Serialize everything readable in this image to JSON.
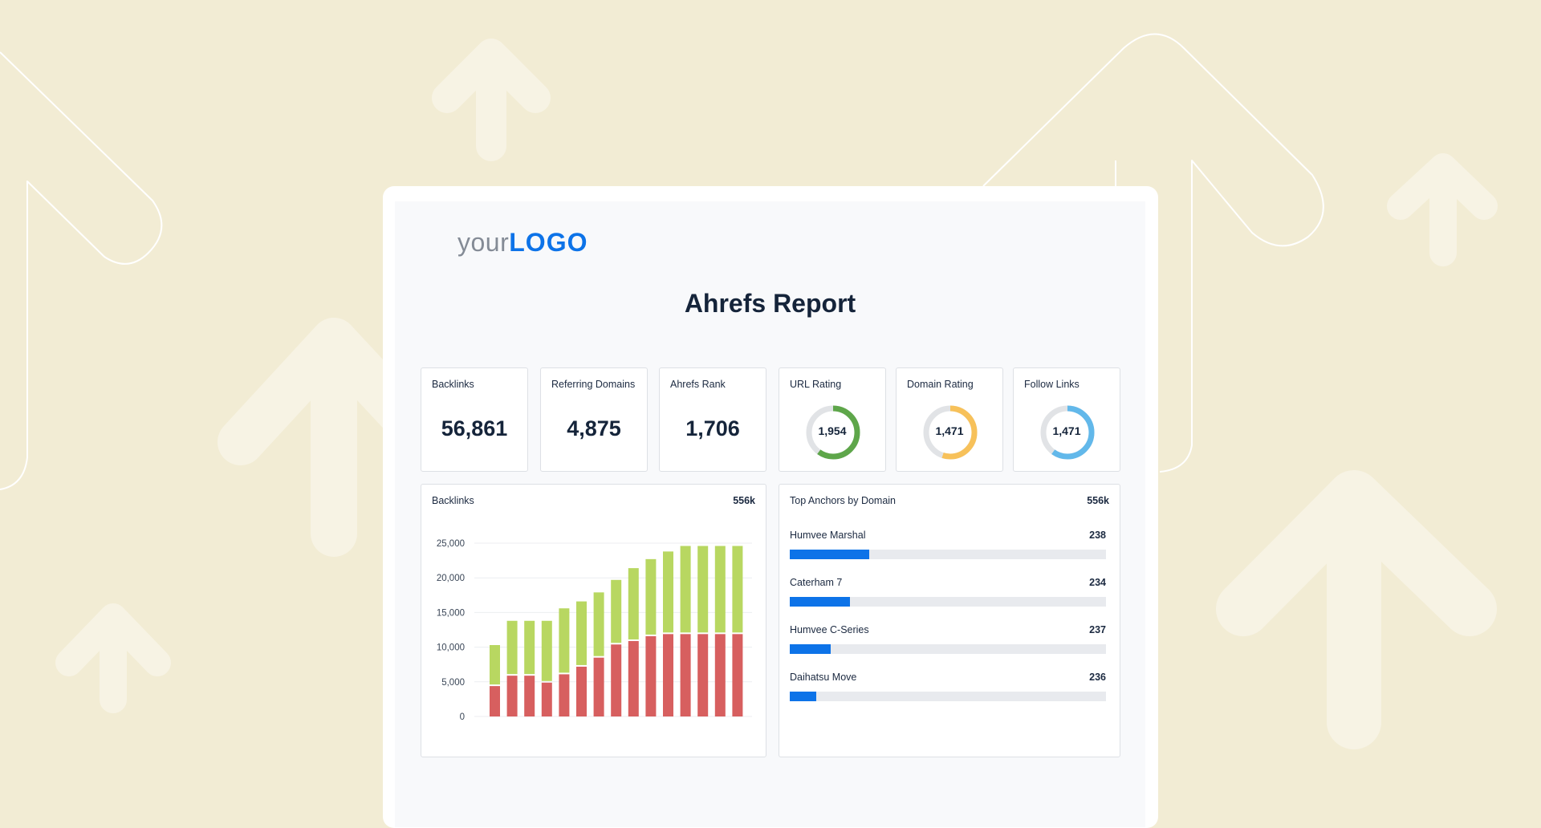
{
  "logo": {
    "prefix": "your",
    "brand": "LOGO"
  },
  "report_title": "Ahrefs Report",
  "kpis": [
    {
      "label": "Backlinks",
      "value": "56,861"
    },
    {
      "label": "Referring Domains",
      "value": "4,875"
    },
    {
      "label": "Ahrefs Rank",
      "value": "1,706"
    },
    {
      "label": "URL Rating",
      "value": "1,954",
      "fraction": 0.6,
      "color": "#5ea64a"
    },
    {
      "label": "Domain Rating",
      "value": "1,471",
      "fraction": 0.55,
      "color": "#f7c15a"
    },
    {
      "label": "Follow Links",
      "value": "1,471",
      "fraction": 0.6,
      "color": "#62b8ea"
    }
  ],
  "backlinks_panel": {
    "title": "Backlinks",
    "total": "556k"
  },
  "chart_data": {
    "type": "bar",
    "stacked": true,
    "grid": true,
    "ylim": [
      0,
      25000
    ],
    "yticks": [
      "0",
      "5,000",
      "10,000",
      "15,000",
      "20,000",
      "25,000"
    ],
    "ytick_values": [
      0,
      5000,
      10000,
      15000,
      20000,
      25000
    ],
    "series": [
      {
        "color": "#d75f5f",
        "values": [
          4500,
          6000,
          6000,
          5000,
          6200,
          7300,
          8600,
          10500,
          11000,
          11700,
          12000,
          12000,
          12000,
          12000,
          12000
        ]
      },
      {
        "color": "#b8d761",
        "values": [
          5800,
          7800,
          7800,
          8800,
          9400,
          9300,
          9300,
          9200,
          10400,
          11000,
          11800,
          12600,
          12600,
          12600,
          12600
        ]
      }
    ]
  },
  "anchors_panel": {
    "title": "Top Anchors by Domain",
    "total": "556k",
    "items": [
      {
        "name": "Humvee Marshal",
        "value": "238",
        "fraction": 0.25
      },
      {
        "name": "Caterham 7",
        "value": "234",
        "fraction": 0.19
      },
      {
        "name": "Humvee C-Series",
        "value": "237",
        "fraction": 0.13
      },
      {
        "name": "Daihatsu Move",
        "value": "236",
        "fraction": 0.085
      }
    ]
  },
  "colors": {
    "background": "#f2ecd4",
    "accent": "#0d73e8"
  }
}
